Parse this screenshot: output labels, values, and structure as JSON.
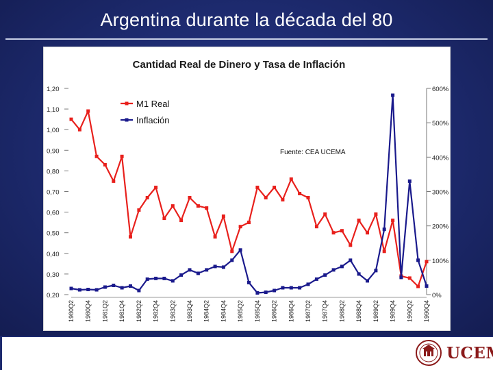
{
  "slide": {
    "title": "Argentina durante la década del 80"
  },
  "branding": {
    "logo_name": "UCEMA"
  },
  "chart_data": {
    "type": "line",
    "title": "Cantidad Real de Dinero y Tasa de Inflación",
    "annotation": "Fuente: CEA UCEMA",
    "legend_position": "top-left",
    "categories": [
      "1980Q2",
      "1980Q3",
      "1980Q4",
      "1981Q1",
      "1981Q2",
      "1981Q3",
      "1981Q4",
      "1982Q1",
      "1982Q2",
      "1982Q3",
      "1982Q4",
      "1983Q1",
      "1983Q2",
      "1983Q3",
      "1983Q4",
      "1984Q1",
      "1984Q2",
      "1984Q3",
      "1984Q4",
      "1985Q1",
      "1985Q2",
      "1985Q3",
      "1985Q4",
      "1986Q1",
      "1986Q2",
      "1986Q3",
      "1986Q4",
      "1987Q1",
      "1987Q2",
      "1987Q3",
      "1987Q4",
      "1988Q1",
      "1988Q2",
      "1988Q3",
      "1988Q4",
      "1989Q1",
      "1989Q2",
      "1989Q3",
      "1989Q4",
      "1990Q1",
      "1990Q2",
      "1990Q3",
      "1990Q4"
    ],
    "x_tick_labels": [
      "1980Q2",
      "1980Q4",
      "1981Q2",
      "1981Q4",
      "1982Q2",
      "1982Q4",
      "1983Q2",
      "1983Q4",
      "1984Q2",
      "1984Q4",
      "1985Q2",
      "1985Q4",
      "1986Q2",
      "1986Q4",
      "1987Q2",
      "1987Q4",
      "1988Q2",
      "1988Q4",
      "1989Q2",
      "1989Q4",
      "1990Q2",
      "1990Q4"
    ],
    "left_axis": {
      "ticks": [
        "1,20",
        "1,10",
        "1,00",
        "0,90",
        "0,80",
        "0,70",
        "0,60",
        "0,50",
        "0,40",
        "0,30",
        "0,20"
      ],
      "range": [
        0.2,
        1.2
      ]
    },
    "right_axis": {
      "ticks": [
        "600%",
        "500%",
        "400%",
        "300%",
        "200%",
        "100%",
        "0%"
      ],
      "range": [
        0,
        600
      ]
    },
    "series": [
      {
        "name": "M1 Real",
        "axis": "left",
        "color": "#e8201c",
        "values": [
          1.05,
          1.0,
          1.09,
          0.87,
          0.83,
          0.75,
          0.87,
          0.48,
          0.61,
          0.67,
          0.72,
          0.57,
          0.63,
          0.56,
          0.67,
          0.63,
          0.62,
          0.48,
          0.58,
          0.41,
          0.53,
          0.55,
          0.72,
          0.67,
          0.72,
          0.66,
          0.76,
          0.69,
          0.67,
          0.53,
          0.59,
          0.5,
          0.51,
          0.44,
          0.56,
          0.5,
          0.59,
          0.41,
          0.56,
          0.29,
          0.28,
          0.24,
          0.36
        ]
      },
      {
        "name": "Inflación",
        "axis": "right",
        "color": "#1a1a8c",
        "values": [
          18,
          14,
          15,
          14,
          22,
          27,
          20,
          25,
          12,
          45,
          47,
          47,
          40,
          57,
          72,
          62,
          72,
          82,
          80,
          100,
          130,
          35,
          5,
          7,
          12,
          20,
          20,
          20,
          30,
          45,
          57,
          72,
          82,
          100,
          60,
          40,
          70,
          190,
          580,
          50,
          330,
          100,
          25
        ]
      }
    ]
  }
}
